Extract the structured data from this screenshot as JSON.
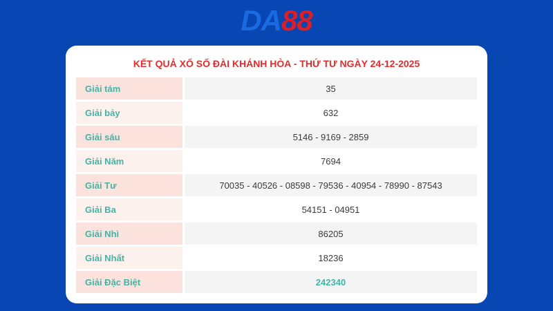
{
  "logo": {
    "part1": "DA",
    "part2": "88"
  },
  "card": {
    "title": "KẾT QUẢ XỔ SỐ ĐÀI KHÁNH HÒA - THỨ TƯ NGÀY 24-12-2025"
  },
  "results": {
    "rows": [
      {
        "label": "Giải tám",
        "value": "35"
      },
      {
        "label": "Giải bảy",
        "value": "632"
      },
      {
        "label": "Giải sáu",
        "value": "5146 - 9169 - 2859"
      },
      {
        "label": "Giải Năm",
        "value": "7694"
      },
      {
        "label": "Giải Tư",
        "value": "70035 - 40526 - 08598 - 79536 - 40954 - 78990 - 87543"
      },
      {
        "label": "Giải Ba",
        "value": "54151 - 04951"
      },
      {
        "label": "Giải Nhì",
        "value": "86205"
      },
      {
        "label": "Giải Nhất",
        "value": "18236"
      },
      {
        "label": "Giải Đặc Biệt",
        "value": "242340"
      }
    ]
  },
  "colors": {
    "page_background": "#0846b4",
    "logo_blue": "#1a6ae0",
    "logo_red": "#d8202a",
    "title_red": "#e12d2d",
    "label_teal": "#45b2a5",
    "special_value_teal": "#45b2a5",
    "label_cell_pink_dark": "#fce2dc",
    "label_cell_pink_light": "#fdf1ee",
    "value_cell_gray": "#f4f4f4",
    "value_cell_white": "#ffffff"
  }
}
